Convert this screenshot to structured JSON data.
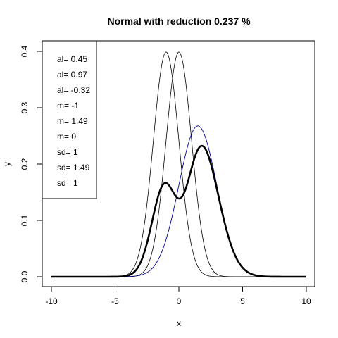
{
  "chart_data": {
    "type": "line",
    "title": "Normal with reduction 0.237 %",
    "xlabel": "x",
    "ylabel": "y",
    "xlim": [
      -10,
      10
    ],
    "ylim": [
      0,
      0.4
    ],
    "x_ticks": [
      -10,
      -5,
      0,
      5,
      10
    ],
    "x_tick_labels": [
      "-10",
      "-5",
      "0",
      "5",
      "10"
    ],
    "y_ticks": [
      0.0,
      0.1,
      0.2,
      0.3,
      0.4
    ],
    "y_tick_labels": [
      "0.0",
      "0.1",
      "0.2",
      "0.3",
      "0.4"
    ],
    "grid": false,
    "legend_position": "top-left",
    "legend_entries": [
      "al= 0.45",
      "al= 0.97",
      "al= -0.32",
      "m= -1",
      "m= 1.49",
      "m= 0",
      "sd= 1",
      "sd= 1.49",
      "sd= 1"
    ],
    "series": [
      {
        "kind": "normal",
        "mean": -1,
        "sd": 1,
        "color": "#000000",
        "width": 0.8,
        "points": 301
      },
      {
        "kind": "normal",
        "mean": 0,
        "sd": 1,
        "color": "#000000",
        "width": 0.8,
        "points": 301
      },
      {
        "kind": "normal",
        "mean": 1.49,
        "sd": 1.49,
        "color": "#00008B",
        "width": 0.9,
        "points": 301
      },
      {
        "kind": "mixture",
        "color": "#000000",
        "width": 2.6,
        "points": 301,
        "components": [
          {
            "weight": 0.45,
            "mean": -1,
            "sd": 1
          },
          {
            "weight": 0.97,
            "mean": 1.49,
            "sd": 1.49
          },
          {
            "weight": -0.32,
            "mean": 0,
            "sd": 1
          }
        ]
      }
    ]
  }
}
